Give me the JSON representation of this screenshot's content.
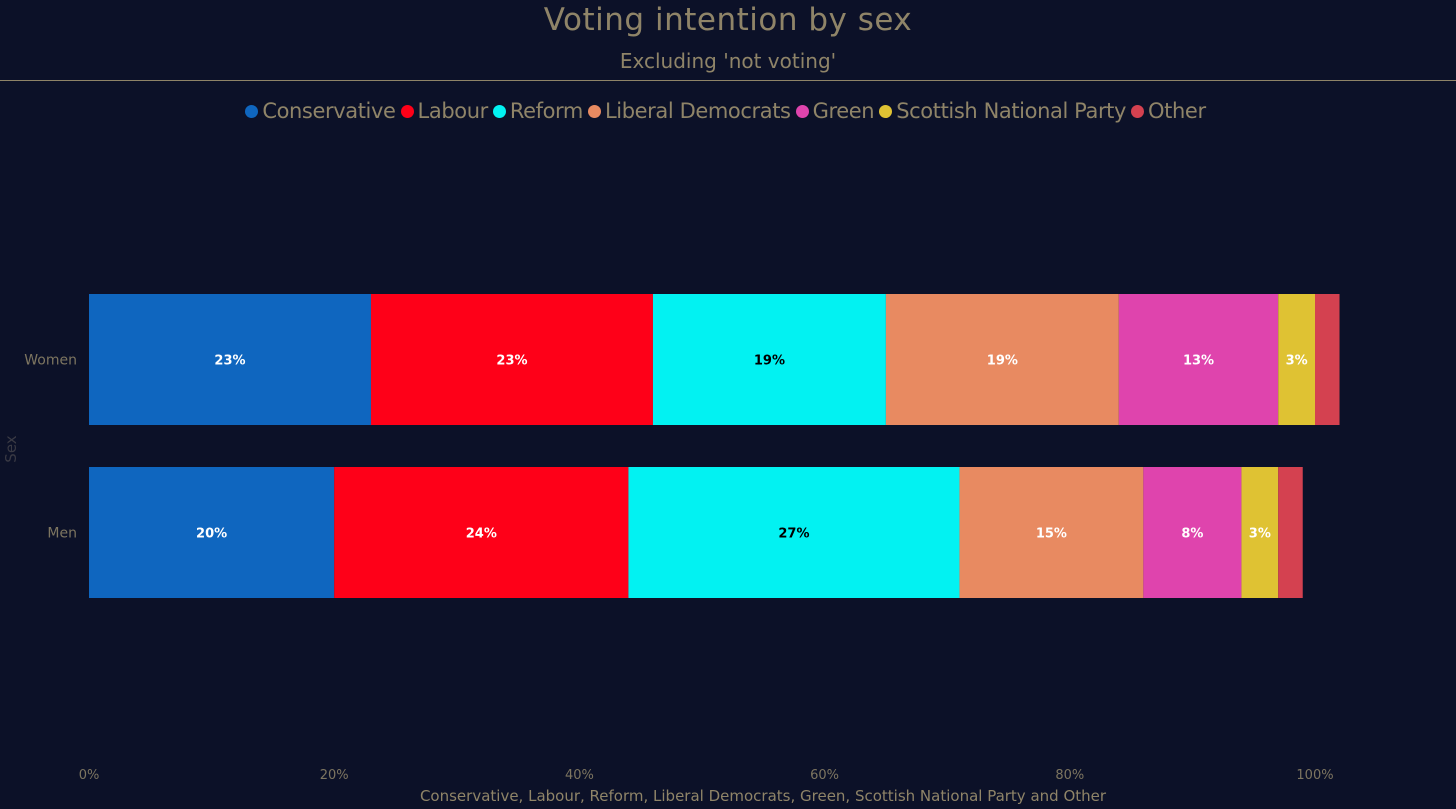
{
  "chart_data": {
    "type": "bar",
    "orientation": "horizontal",
    "stacked": true,
    "title": "Voting intention by sex",
    "subtitle": "Excluding 'not voting'",
    "xlabel": "Conservative, Labour, Reform, Liberal Democrats, Green, Scottish National Party and Other",
    "ylabel": "Sex",
    "xlim": [
      0,
      100
    ],
    "x_ticks": [
      "0%",
      "20%",
      "40%",
      "60%",
      "80%",
      "100%"
    ],
    "legend_position": "top-center",
    "grid": false,
    "categories": [
      "Women",
      "Men"
    ],
    "series": [
      {
        "name": "Conservative",
        "color": "#0f66bf",
        "label_color": "#ffffff",
        "values": [
          23,
          20
        ],
        "labels": [
          "23%",
          "20%"
        ]
      },
      {
        "name": "Labour",
        "color": "#fe0018",
        "label_color": "#ffffff",
        "values": [
          23,
          24
        ],
        "labels": [
          "23%",
          "24%"
        ]
      },
      {
        "name": "Reform",
        "color": "#02f2f2",
        "label_color": "#000000",
        "values": [
          19,
          27
        ],
        "labels": [
          "19%",
          "27%"
        ]
      },
      {
        "name": "Liberal Democrats",
        "color": "#e88a61",
        "label_color": "#ffffff",
        "values": [
          19,
          15
        ],
        "labels": [
          "19%",
          "15%"
        ]
      },
      {
        "name": "Green",
        "color": "#df44ad",
        "label_color": "#ffffff",
        "values": [
          13,
          8
        ],
        "labels": [
          "13%",
          "8%"
        ]
      },
      {
        "name": "Scottish National Party",
        "color": "#dfc233",
        "label_color": "#ffffff",
        "values": [
          3,
          3
        ],
        "labels": [
          "3%",
          "3%"
        ]
      },
      {
        "name": "Other",
        "color": "#d44150",
        "label_color": "#ffffff",
        "values": [
          2,
          2
        ],
        "labels": [
          "",
          ""
        ]
      }
    ]
  }
}
